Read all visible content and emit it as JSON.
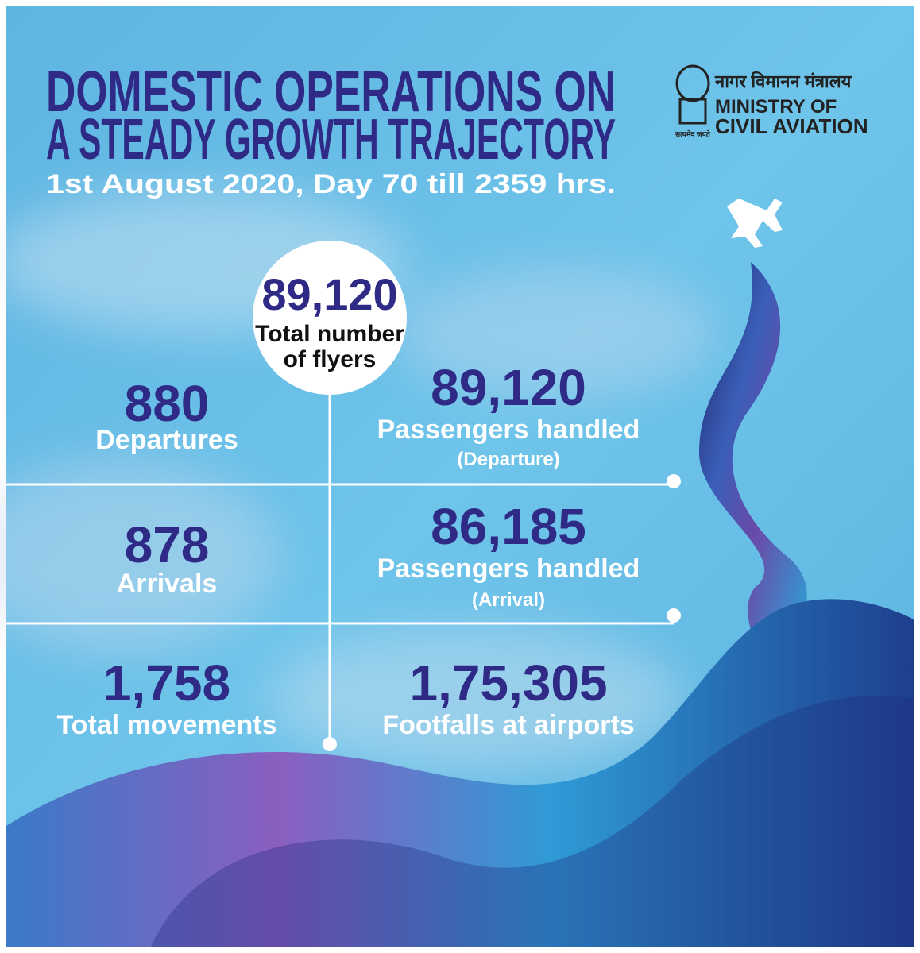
{
  "header": {
    "title_line1": "DOMESTIC OPERATIONS ON",
    "title_line2": "A STEADY GROWTH TRAJECTORY",
    "subtitle": "1st August 2020, Day 70 till 2359 hrs."
  },
  "logo": {
    "hindi": "नागर विमानन मंत्रालय",
    "line1": "MINISTRY OF",
    "line2": "CIVIL AVIATION",
    "motto": "सत्यमेव जयते"
  },
  "center": {
    "value": "89,120",
    "label_line1": "Total number",
    "label_line2": "of flyers"
  },
  "stats": [
    {
      "value": "880",
      "label": "Departures"
    },
    {
      "value": "89,120",
      "label": "Passengers handled",
      "note": "(Departure)"
    },
    {
      "value": "878",
      "label": "Arrivals"
    },
    {
      "value": "86,185",
      "label": "Passengers handled",
      "note": "(Arrival)"
    },
    {
      "value": "1,758",
      "label": "Total movements"
    },
    {
      "value": "1,75,305",
      "label": "Footfalls at airports"
    }
  ]
}
